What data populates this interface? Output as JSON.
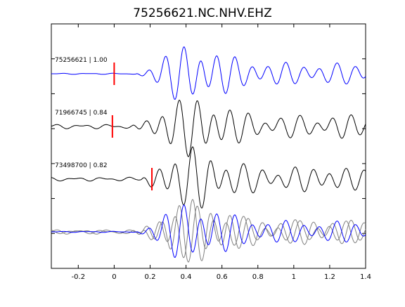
{
  "chart_data": {
    "type": "line",
    "title": "75256621.NC.NHV.EHZ",
    "xlabel": "",
    "ylabel": "",
    "xlim": [
      -0.35,
      1.4
    ],
    "x_ticks": [
      -0.2,
      0,
      0.2,
      0.4,
      0.6,
      0.8,
      1,
      1.2,
      1.4
    ],
    "x_tick_labels": [
      "-0.2",
      "0",
      "0.2",
      "0.4",
      "0.6",
      "0.8",
      "1",
      "1.2",
      "1.4"
    ],
    "y_tick_count": 6,
    "grid": false,
    "legend": "none",
    "colors": {
      "reference": "#0000ff",
      "match": "#000000",
      "overlay_match": "#808080",
      "pick": "#ff0000"
    },
    "traces": [
      {
        "id": "75256621",
        "label": "75256621 | 1.00",
        "color": "#0000ff",
        "pick_time": 0.0,
        "onset": 0.12,
        "seed": 1.3,
        "amp": 1.0,
        "noise": 0.03
      },
      {
        "id": "71966745",
        "label": "71966745 | 0.84",
        "color": "#000000",
        "pick_time": -0.01,
        "onset": 0.1,
        "seed": 2.7,
        "amp": 1.0,
        "noise": 0.12
      },
      {
        "id": "73498700",
        "label": "73498700 | 0.82",
        "color": "#000000",
        "pick_time": 0.21,
        "onset": 0.15,
        "seed": 4.1,
        "amp": 1.05,
        "noise": 0.1
      }
    ],
    "overlay": {
      "label": "",
      "description_hidden": true
    }
  }
}
